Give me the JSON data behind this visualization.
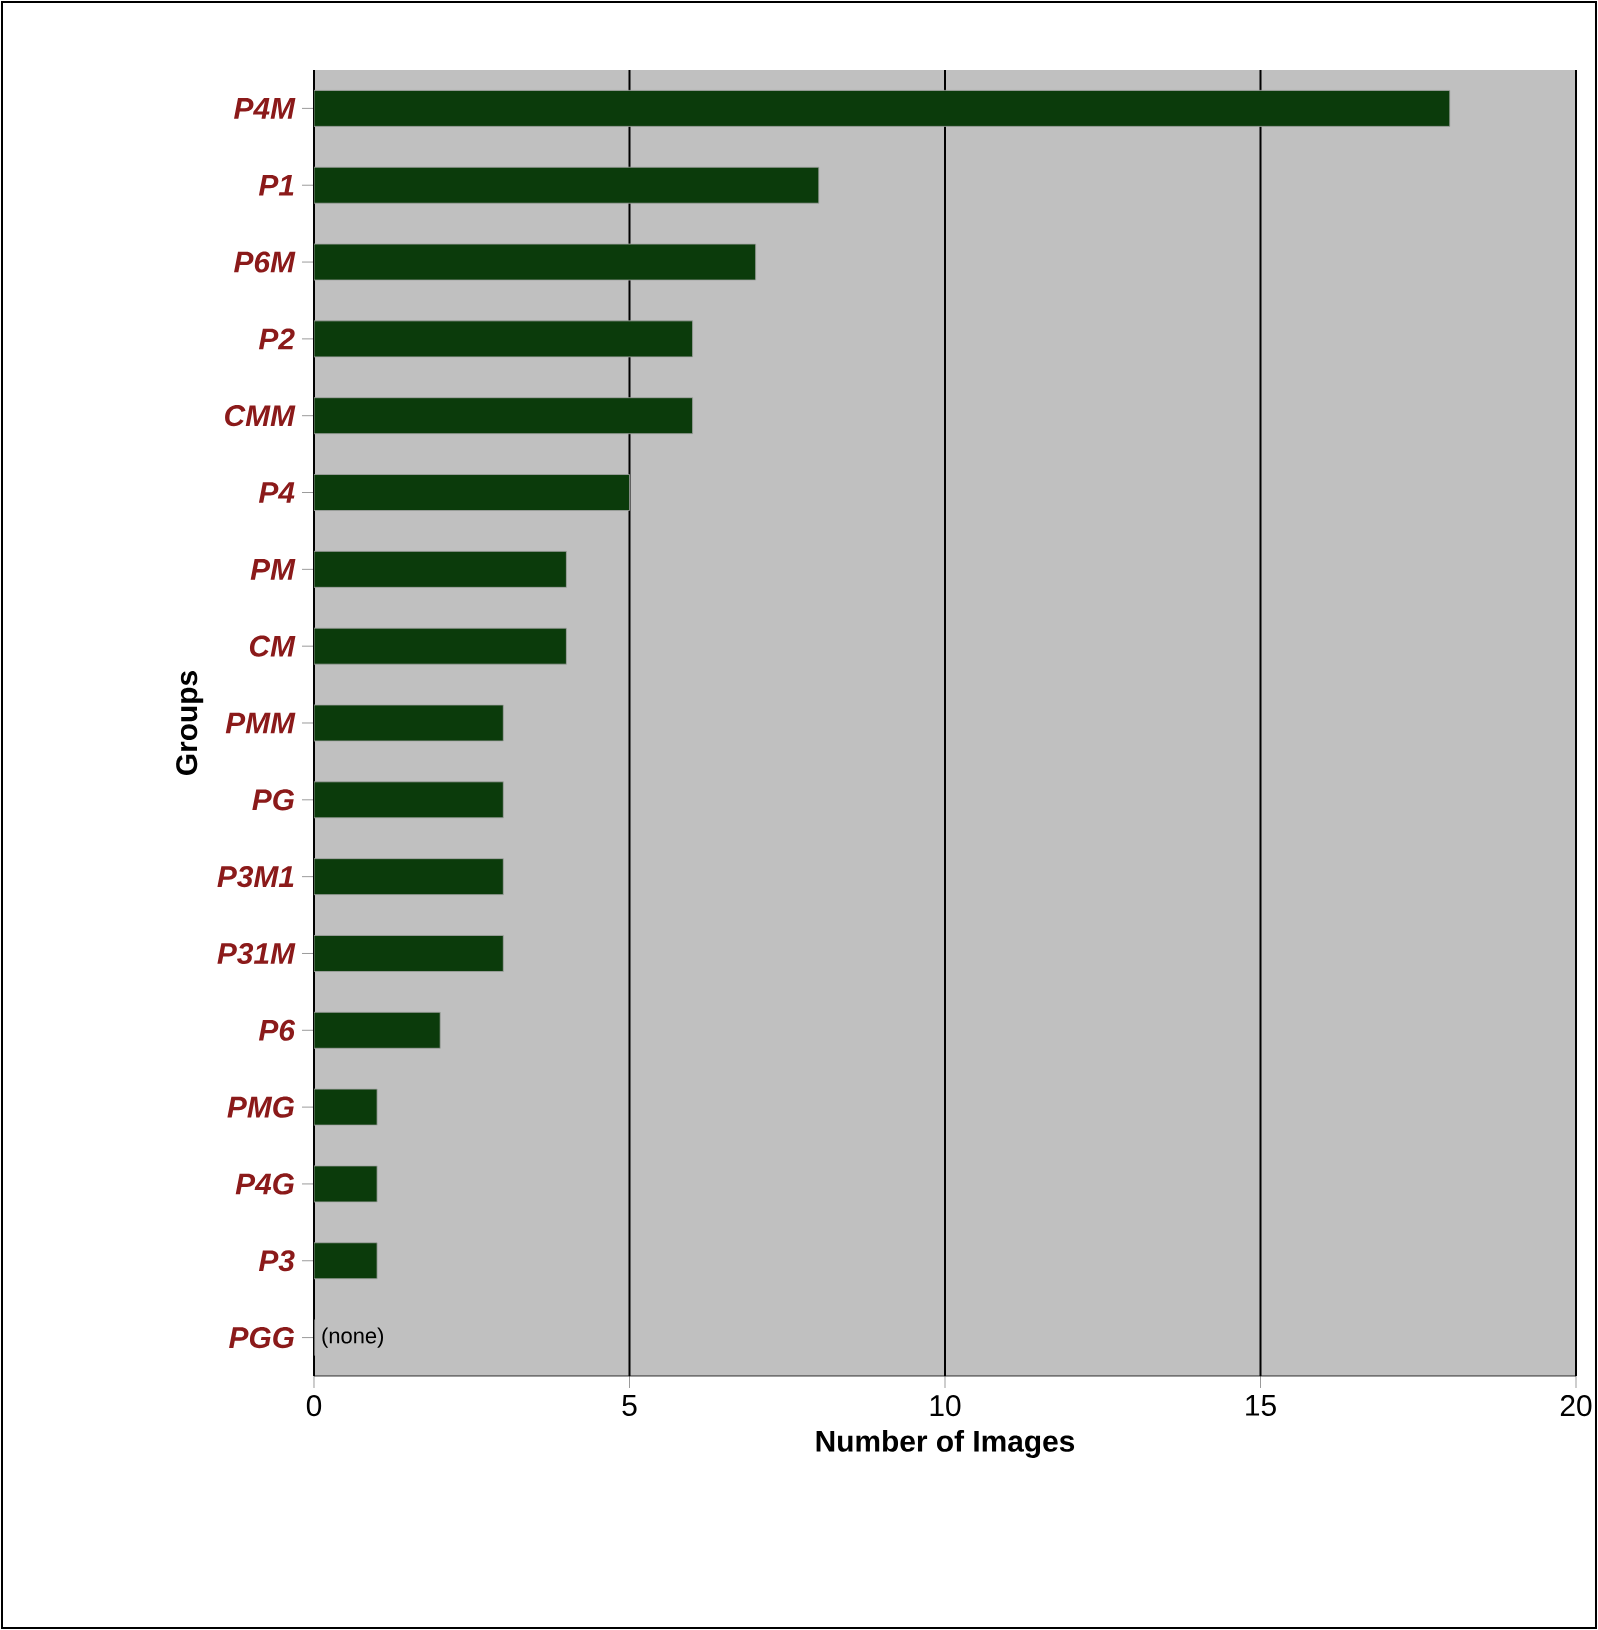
{
  "chart_data": {
    "type": "bar",
    "orientation": "horizontal",
    "xlabel": "Number of Images",
    "ylabel": "Groups",
    "categories": [
      "P4M",
      "P1",
      "P6M",
      "P2",
      "CMM",
      "P4",
      "PM",
      "CM",
      "PMM",
      "PG",
      "P3M1",
      "P31M",
      "P6",
      "PMG",
      "P4G",
      "P3",
      "PGG"
    ],
    "values": [
      18,
      8,
      7,
      6,
      6,
      5,
      4,
      4,
      3,
      3,
      3,
      3,
      2,
      1,
      1,
      1,
      0
    ],
    "color": "#0b3b0b",
    "xlim": [
      0,
      20
    ],
    "xticks": [
      0,
      5,
      10,
      15,
      20
    ],
    "grid": "x",
    "annotations": [
      {
        "text": "(none)",
        "x": 0,
        "y": "PGG"
      }
    ]
  }
}
